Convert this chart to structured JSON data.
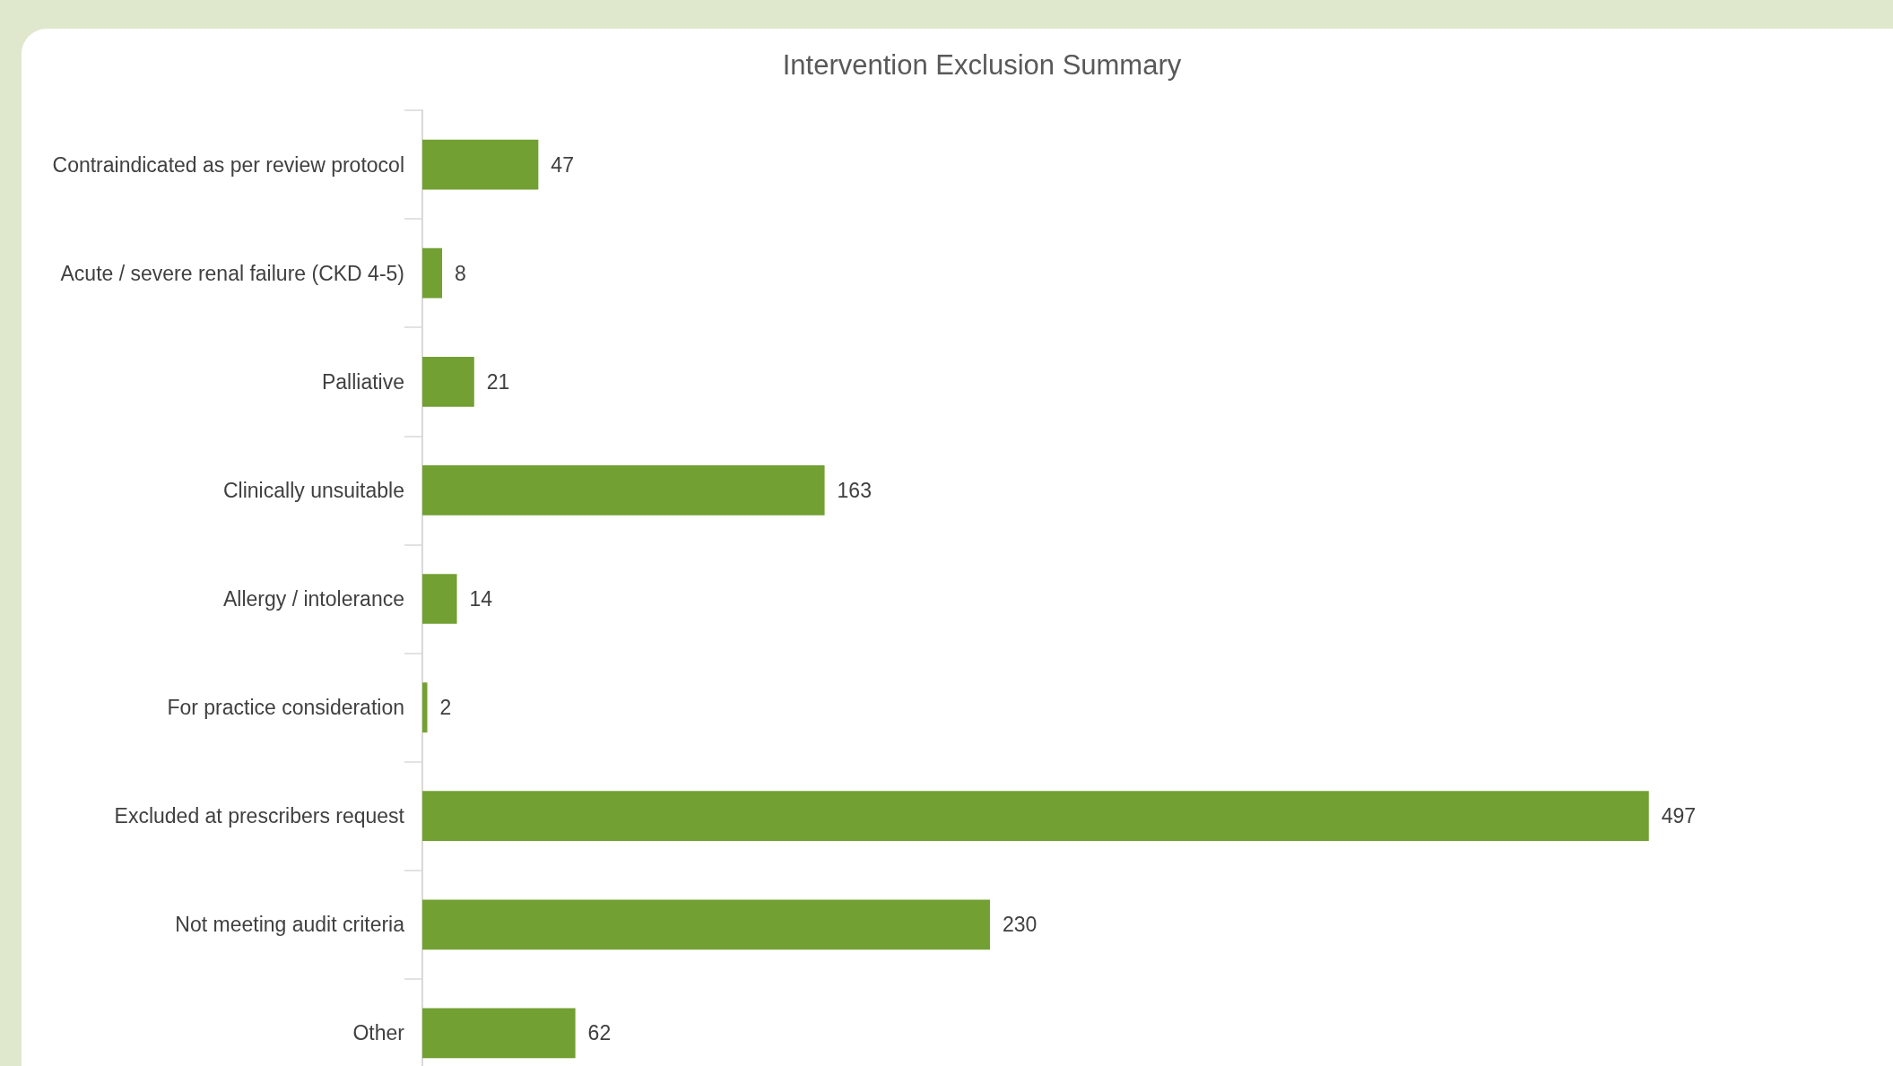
{
  "chart_data": {
    "type": "bar",
    "orientation": "horizontal",
    "title": "Intervention Exclusion Summary",
    "categories": [
      "Contraindicated as per review protocol",
      "Acute / severe renal failure (CKD 4-5)",
      "Palliative",
      "Clinically unsuitable",
      "Allergy / intolerance",
      "For practice consideration",
      "Excluded at prescribers request",
      "Not meeting audit criteria",
      "Other"
    ],
    "values": [
      47,
      8,
      21,
      163,
      14,
      2,
      497,
      230,
      62
    ],
    "color": "#72a033",
    "data_labels": true
  }
}
